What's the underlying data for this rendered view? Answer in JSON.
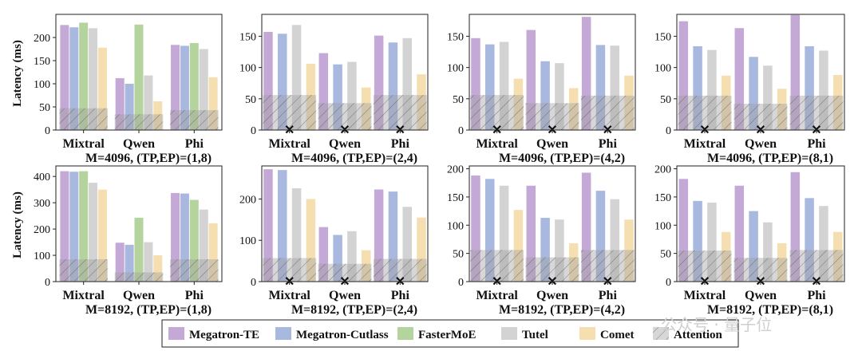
{
  "ylabel": "Latency (ms)",
  "legend": [
    {
      "name": "Megatron-TE",
      "color": "#c4a8d6"
    },
    {
      "name": "Megatron-Cutlass",
      "color": "#a8b8de"
    },
    {
      "name": "FasterMoE",
      "color": "#b5d49d"
    },
    {
      "name": "Tutel",
      "color": "#d3d3d3"
    },
    {
      "name": "Comet",
      "color": "#f5deb0"
    },
    {
      "name": "Attention",
      "color": "#9e9e9e"
    }
  ],
  "watermark": "公众号 · 量子位",
  "chart_data": [
    {
      "type": "bar",
      "title": "M=4096, (TP,EP)=(1,8)",
      "categories": [
        "Mixtral",
        "Qwen",
        "Phi"
      ],
      "ylim": [
        0,
        250
      ],
      "yticks": [
        0,
        50,
        100,
        150,
        200
      ],
      "series": [
        {
          "name": "Megatron-TE",
          "values": [
            227,
            112,
            184
          ]
        },
        {
          "name": "Megatron-Cutlass",
          "values": [
            222,
            100,
            182
          ]
        },
        {
          "name": "FasterMoE",
          "values": [
            232,
            228,
            188
          ]
        },
        {
          "name": "Tutel",
          "values": [
            220,
            118,
            175
          ]
        },
        {
          "name": "Comet",
          "values": [
            178,
            62,
            114
          ]
        }
      ],
      "attention": [
        47,
        34,
        43
      ],
      "x_marks": false
    },
    {
      "type": "bar",
      "title": "M=4096, (TP,EP)=(2,4)",
      "categories": [
        "Mixtral",
        "Qwen",
        "Phi"
      ],
      "ylim": [
        0,
        185
      ],
      "yticks": [
        0,
        50,
        100,
        150
      ],
      "series": [
        {
          "name": "Megatron-TE",
          "values": [
            157,
            123,
            151
          ]
        },
        {
          "name": "Megatron-Cutlass",
          "values": [
            154,
            105,
            140
          ]
        },
        {
          "name": "Tutel",
          "values": [
            168,
            109,
            147
          ]
        },
        {
          "name": "Comet",
          "values": [
            106,
            68,
            89
          ]
        }
      ],
      "attention": [
        56,
        43,
        56
      ],
      "x_marks": true
    },
    {
      "type": "bar",
      "title": "M=4096, (TP,EP)=(4,2)",
      "categories": [
        "Mixtral",
        "Qwen",
        "Phi"
      ],
      "ylim": [
        0,
        185
      ],
      "yticks": [
        0,
        50,
        100,
        150
      ],
      "series": [
        {
          "name": "Megatron-TE",
          "values": [
            147,
            160,
            181
          ]
        },
        {
          "name": "Megatron-Cutlass",
          "values": [
            137,
            110,
            136
          ]
        },
        {
          "name": "Tutel",
          "values": [
            141,
            107,
            135
          ]
        },
        {
          "name": "Comet",
          "values": [
            82,
            67,
            87
          ]
        }
      ],
      "attention": [
        56,
        43,
        55
      ],
      "x_marks": true
    },
    {
      "type": "bar",
      "title": "M=4096, (TP,EP)=(8,1)",
      "categories": [
        "Mixtral",
        "Qwen",
        "Phi"
      ],
      "ylim": [
        0,
        185
      ],
      "yticks": [
        0,
        50,
        100,
        150
      ],
      "series": [
        {
          "name": "Megatron-TE",
          "values": [
            174,
            163,
            184
          ]
        },
        {
          "name": "Megatron-Cutlass",
          "values": [
            134,
            117,
            134
          ]
        },
        {
          "name": "Tutel",
          "values": [
            128,
            103,
            127
          ]
        },
        {
          "name": "Comet",
          "values": [
            87,
            66,
            88
          ]
        }
      ],
      "attention": [
        55,
        42,
        55
      ],
      "x_marks": true
    },
    {
      "type": "bar",
      "title": "M=8192, (TP,EP)=(1,8)",
      "categories": [
        "Mixtral",
        "Qwen",
        "Phi"
      ],
      "ylim": [
        0,
        440
      ],
      "yticks": [
        0,
        100,
        200,
        300,
        400
      ],
      "series": [
        {
          "name": "Megatron-TE",
          "values": [
            420,
            148,
            337
          ]
        },
        {
          "name": "Megatron-Cutlass",
          "values": [
            418,
            140,
            335
          ]
        },
        {
          "name": "FasterMoE",
          "values": [
            420,
            243,
            311
          ]
        },
        {
          "name": "Tutel",
          "values": [
            376,
            150,
            274
          ]
        },
        {
          "name": "Comet",
          "values": [
            350,
            100,
            222
          ]
        }
      ],
      "attention": [
        85,
        35,
        85
      ],
      "x_marks": false
    },
    {
      "type": "bar",
      "title": "M=8192, (TP,EP)=(2,4)",
      "categories": [
        "Mixtral",
        "Qwen",
        "Phi"
      ],
      "ylim": [
        0,
        280
      ],
      "yticks": [
        0,
        100,
        200
      ],
      "series": [
        {
          "name": "Megatron-TE",
          "values": [
            272,
            132,
            223
          ]
        },
        {
          "name": "Megatron-Cutlass",
          "values": [
            270,
            113,
            218
          ]
        },
        {
          "name": "Tutel",
          "values": [
            226,
            122,
            181
          ]
        },
        {
          "name": "Comet",
          "values": [
            200,
            76,
            155
          ]
        }
      ],
      "attention": [
        57,
        43,
        55
      ],
      "x_marks": true
    },
    {
      "type": "bar",
      "title": "M=8192, (TP,EP)=(4,2)",
      "categories": [
        "Mixtral",
        "Qwen",
        "Phi"
      ],
      "ylim": [
        0,
        205
      ],
      "yticks": [
        0,
        50,
        100,
        150,
        200
      ],
      "series": [
        {
          "name": "Megatron-TE",
          "values": [
            188,
            170,
            193
          ]
        },
        {
          "name": "Megatron-Cutlass",
          "values": [
            182,
            113,
            161
          ]
        },
        {
          "name": "Tutel",
          "values": [
            170,
            110,
            146
          ]
        },
        {
          "name": "Comet",
          "values": [
            127,
            68,
            110
          ]
        }
      ],
      "attention": [
        56,
        43,
        56
      ],
      "x_marks": true
    },
    {
      "type": "bar",
      "title": "M=8192, (TP,EP)=(8,1)",
      "categories": [
        "Mixtral",
        "Qwen",
        "Phi"
      ],
      "ylim": [
        0,
        205
      ],
      "yticks": [
        0,
        50,
        100,
        150,
        200
      ],
      "series": [
        {
          "name": "Megatron-TE",
          "values": [
            182,
            170,
            194
          ]
        },
        {
          "name": "Megatron-Cutlass",
          "values": [
            143,
            125,
            148
          ]
        },
        {
          "name": "Tutel",
          "values": [
            140,
            105,
            134
          ]
        },
        {
          "name": "Comet",
          "values": [
            88,
            68,
            88
          ]
        }
      ],
      "attention": [
        55,
        42,
        56
      ],
      "x_marks": true
    }
  ]
}
